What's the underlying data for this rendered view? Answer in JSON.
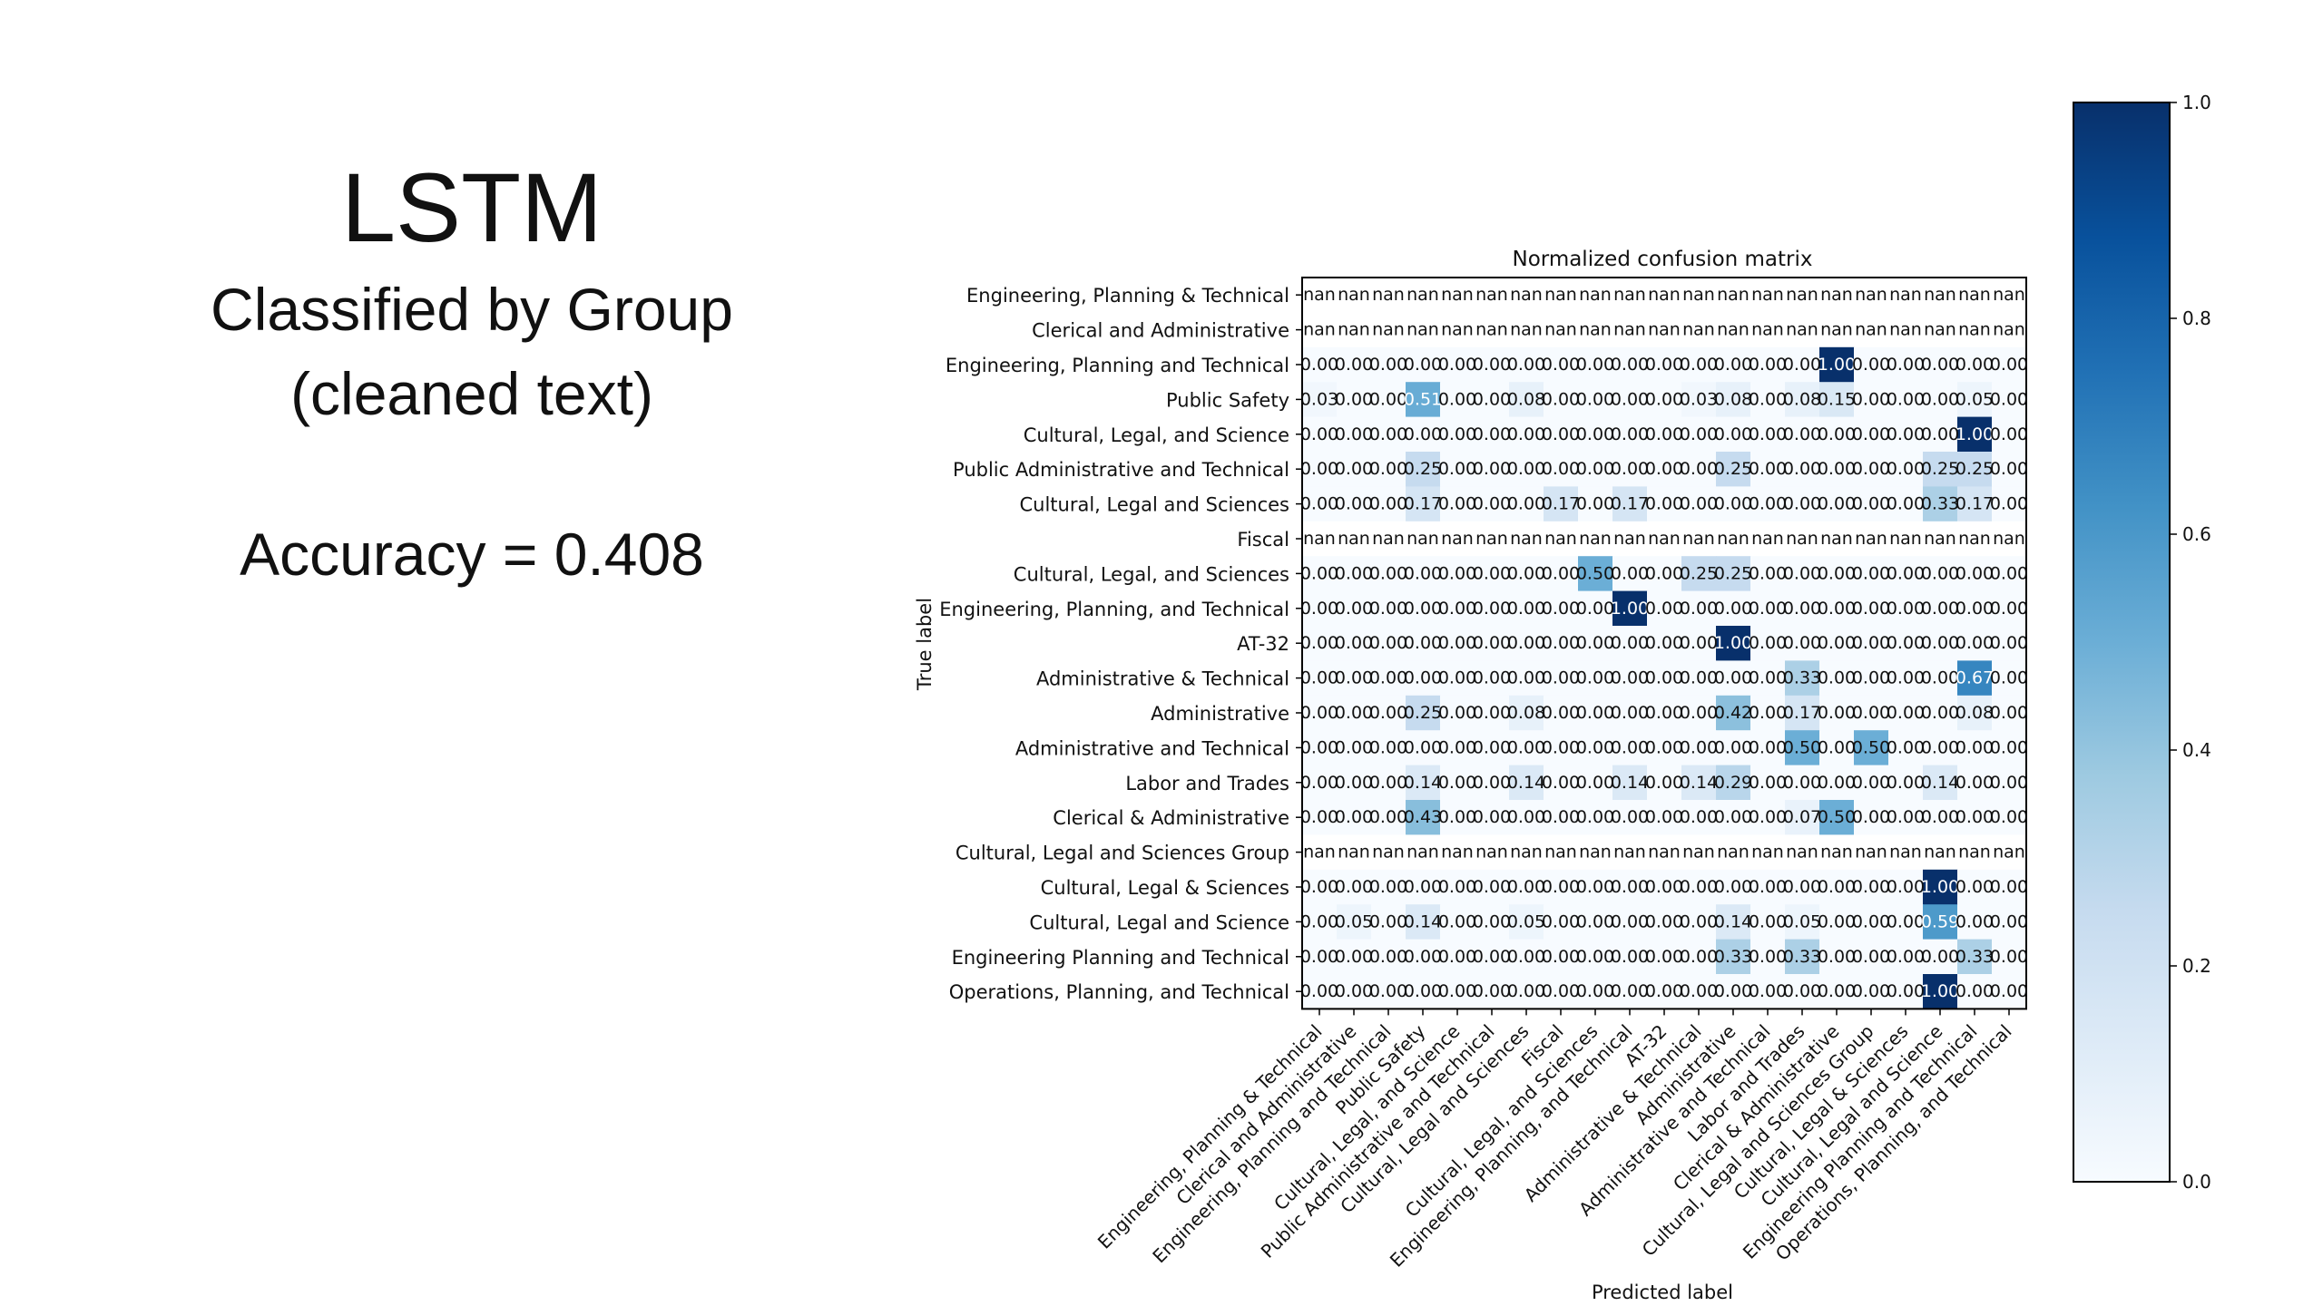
{
  "slide": {
    "title": "LSTM",
    "subtitle_line1": "Classified by Group",
    "subtitle_line2": "(cleaned text)",
    "accuracy": "Accuracy = 0.408"
  },
  "chart_data": {
    "type": "heatmap",
    "title": "Normalized confusion matrix",
    "xlabel": "Predicted label",
    "ylabel": "True label",
    "colormap": "Blues",
    "colorbar": {
      "min": 0.0,
      "max": 1.0,
      "ticks": [
        "0.0",
        "0.2",
        "0.4",
        "0.6",
        "0.8",
        "1.0"
      ]
    },
    "labels": [
      "Engineering, Planning & Technical",
      "Clerical and Administrative",
      "Engineering, Planning and Technical",
      "Public Safety",
      "Cultural, Legal, and Science",
      "Public Administrative and Technical",
      "Cultural, Legal and Sciences",
      "Fiscal",
      "Cultural, Legal, and Sciences",
      "Engineering, Planning, and Technical",
      "AT-32",
      "Administrative & Technical",
      "Administrative",
      "Administrative and Technical",
      "Labor and Trades",
      "Clerical & Administrative",
      "Cultural, Legal and Sciences Group",
      "Cultural, Legal & Sciences",
      "Cultural, Legal and Science",
      "Engineering Planning and Technical",
      "Operations, Planning, and Technical"
    ],
    "matrix": [
      [
        "nan",
        "nan",
        "nan",
        "nan",
        "nan",
        "nan",
        "nan",
        "nan",
        "nan",
        "nan",
        "nan",
        "nan",
        "nan",
        "nan",
        "nan",
        "nan",
        "nan",
        "nan",
        "nan",
        "nan",
        "nan"
      ],
      [
        "nan",
        "nan",
        "nan",
        "nan",
        "nan",
        "nan",
        "nan",
        "nan",
        "nan",
        "nan",
        "nan",
        "nan",
        "nan",
        "nan",
        "nan",
        "nan",
        "nan",
        "nan",
        "nan",
        "nan",
        "nan"
      ],
      [
        "0.00",
        "0.00",
        "0.00",
        "0.00",
        "0.00",
        "0.00",
        "0.00",
        "0.00",
        "0.00",
        "0.00",
        "0.00",
        "0.00",
        "0.00",
        "0.00",
        "0.00",
        "1.00",
        "0.00",
        "0.00",
        "0.00",
        "0.00",
        "0.00"
      ],
      [
        "0.03",
        "0.00",
        "0.00",
        "0.51",
        "0.00",
        "0.00",
        "0.08",
        "0.00",
        "0.00",
        "0.00",
        "0.00",
        "0.03",
        "0.08",
        "0.00",
        "0.08",
        "0.15",
        "0.00",
        "0.00",
        "0.00",
        "0.05",
        "0.00"
      ],
      [
        "0.00",
        "0.00",
        "0.00",
        "0.00",
        "0.00",
        "0.00",
        "0.00",
        "0.00",
        "0.00",
        "0.00",
        "0.00",
        "0.00",
        "0.00",
        "0.00",
        "0.00",
        "0.00",
        "0.00",
        "0.00",
        "0.00",
        "1.00",
        "0.00"
      ],
      [
        "0.00",
        "0.00",
        "0.00",
        "0.25",
        "0.00",
        "0.00",
        "0.00",
        "0.00",
        "0.00",
        "0.00",
        "0.00",
        "0.00",
        "0.25",
        "0.00",
        "0.00",
        "0.00",
        "0.00",
        "0.00",
        "0.25",
        "0.25",
        "0.00"
      ],
      [
        "0.00",
        "0.00",
        "0.00",
        "0.17",
        "0.00",
        "0.00",
        "0.00",
        "0.17",
        "0.00",
        "0.17",
        "0.00",
        "0.00",
        "0.00",
        "0.00",
        "0.00",
        "0.00",
        "0.00",
        "0.00",
        "0.33",
        "0.17",
        "0.00"
      ],
      [
        "nan",
        "nan",
        "nan",
        "nan",
        "nan",
        "nan",
        "nan",
        "nan",
        "nan",
        "nan",
        "nan",
        "nan",
        "nan",
        "nan",
        "nan",
        "nan",
        "nan",
        "nan",
        "nan",
        "nan",
        "nan"
      ],
      [
        "0.00",
        "0.00",
        "0.00",
        "0.00",
        "0.00",
        "0.00",
        "0.00",
        "0.00",
        "0.50",
        "0.00",
        "0.00",
        "0.25",
        "0.25",
        "0.00",
        "0.00",
        "0.00",
        "0.00",
        "0.00",
        "0.00",
        "0.00",
        "0.00"
      ],
      [
        "0.00",
        "0.00",
        "0.00",
        "0.00",
        "0.00",
        "0.00",
        "0.00",
        "0.00",
        "0.00",
        "1.00",
        "0.00",
        "0.00",
        "0.00",
        "0.00",
        "0.00",
        "0.00",
        "0.00",
        "0.00",
        "0.00",
        "0.00",
        "0.00"
      ],
      [
        "0.00",
        "0.00",
        "0.00",
        "0.00",
        "0.00",
        "0.00",
        "0.00",
        "0.00",
        "0.00",
        "0.00",
        "0.00",
        "0.00",
        "1.00",
        "0.00",
        "0.00",
        "0.00",
        "0.00",
        "0.00",
        "0.00",
        "0.00",
        "0.00"
      ],
      [
        "0.00",
        "0.00",
        "0.00",
        "0.00",
        "0.00",
        "0.00",
        "0.00",
        "0.00",
        "0.00",
        "0.00",
        "0.00",
        "0.00",
        "0.00",
        "0.00",
        "0.33",
        "0.00",
        "0.00",
        "0.00",
        "0.00",
        "0.67",
        "0.00"
      ],
      [
        "0.00",
        "0.00",
        "0.00",
        "0.25",
        "0.00",
        "0.00",
        "0.08",
        "0.00",
        "0.00",
        "0.00",
        "0.00",
        "0.00",
        "0.42",
        "0.00",
        "0.17",
        "0.00",
        "0.00",
        "0.00",
        "0.00",
        "0.08",
        "0.00"
      ],
      [
        "0.00",
        "0.00",
        "0.00",
        "0.00",
        "0.00",
        "0.00",
        "0.00",
        "0.00",
        "0.00",
        "0.00",
        "0.00",
        "0.00",
        "0.00",
        "0.00",
        "0.50",
        "0.00",
        "0.50",
        "0.00",
        "0.00",
        "0.00",
        "0.00"
      ],
      [
        "0.00",
        "0.00",
        "0.00",
        "0.14",
        "0.00",
        "0.00",
        "0.14",
        "0.00",
        "0.00",
        "0.14",
        "0.00",
        "0.14",
        "0.29",
        "0.00",
        "0.00",
        "0.00",
        "0.00",
        "0.00",
        "0.14",
        "0.00",
        "0.00"
      ],
      [
        "0.00",
        "0.00",
        "0.00",
        "0.43",
        "0.00",
        "0.00",
        "0.00",
        "0.00",
        "0.00",
        "0.00",
        "0.00",
        "0.00",
        "0.00",
        "0.00",
        "0.07",
        "0.50",
        "0.00",
        "0.00",
        "0.00",
        "0.00",
        "0.00"
      ],
      [
        "nan",
        "nan",
        "nan",
        "nan",
        "nan",
        "nan",
        "nan",
        "nan",
        "nan",
        "nan",
        "nan",
        "nan",
        "nan",
        "nan",
        "nan",
        "nan",
        "nan",
        "nan",
        "nan",
        "nan",
        "nan"
      ],
      [
        "0.00",
        "0.00",
        "0.00",
        "0.00",
        "0.00",
        "0.00",
        "0.00",
        "0.00",
        "0.00",
        "0.00",
        "0.00",
        "0.00",
        "0.00",
        "0.00",
        "0.00",
        "0.00",
        "0.00",
        "0.00",
        "1.00",
        "0.00",
        "0.00"
      ],
      [
        "0.00",
        "0.05",
        "0.00",
        "0.14",
        "0.00",
        "0.00",
        "0.05",
        "0.00",
        "0.00",
        "0.00",
        "0.00",
        "0.00",
        "0.14",
        "0.00",
        "0.05",
        "0.00",
        "0.00",
        "0.00",
        "0.59",
        "0.00",
        "0.00"
      ],
      [
        "0.00",
        "0.00",
        "0.00",
        "0.00",
        "0.00",
        "0.00",
        "0.00",
        "0.00",
        "0.00",
        "0.00",
        "0.00",
        "0.00",
        "0.33",
        "0.00",
        "0.33",
        "0.00",
        "0.00",
        "0.00",
        "0.00",
        "0.33",
        "0.00"
      ],
      [
        "0.00",
        "0.00",
        "0.00",
        "0.00",
        "0.00",
        "0.00",
        "0.00",
        "0.00",
        "0.00",
        "0.00",
        "0.00",
        "0.00",
        "0.00",
        "0.00",
        "0.00",
        "0.00",
        "0.00",
        "0.00",
        "1.00",
        "0.00",
        "0.00"
      ]
    ]
  }
}
